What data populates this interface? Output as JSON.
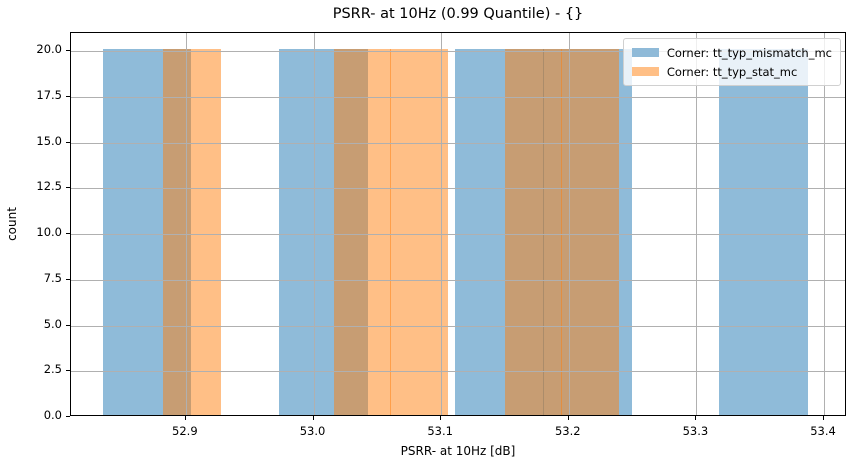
{
  "chart_data": {
    "type": "bar",
    "subtype": "histogram-overlay",
    "title": "PSRR- at 10Hz (0.99 Quantile) - {}",
    "xlabel": "PSRR- at 10Hz [dB]",
    "ylabel": "count",
    "xlim": [
      52.81,
      53.418
    ],
    "ylim": [
      0,
      21
    ],
    "xticks": [
      "52.9",
      "53.0",
      "53.1",
      "53.2",
      "53.3",
      "53.4"
    ],
    "yticks": [
      "0.0",
      "2.5",
      "5.0",
      "7.5",
      "10.0",
      "12.5",
      "15.0",
      "17.5",
      "20.0"
    ],
    "grid": true,
    "legend_position": "upper right",
    "series": [
      {
        "name": "Corner: tt_typ_mismatch_mc",
        "color": "#8fbad8",
        "bins": [
          {
            "x0": 52.835,
            "x1": 52.904,
            "count": 20
          },
          {
            "x0": 52.973,
            "x1": 53.042,
            "count": 20
          },
          {
            "x0": 53.111,
            "x1": 53.18,
            "count": 20
          },
          {
            "x0": 53.18,
            "x1": 53.249,
            "count": 20
          },
          {
            "x0": 53.318,
            "x1": 53.387,
            "count": 20
          }
        ]
      },
      {
        "name": "Corner: tt_typ_stat_mc",
        "color": "#ffbf86",
        "bins": [
          {
            "x0": 52.882,
            "x1": 52.927,
            "count": 20
          },
          {
            "x0": 53.016,
            "x1": 53.06,
            "count": 20
          },
          {
            "x0": 53.06,
            "x1": 53.105,
            "count": 20
          },
          {
            "x0": 53.15,
            "x1": 53.194,
            "count": 20
          },
          {
            "x0": 53.194,
            "x1": 53.239,
            "count": 20
          }
        ]
      }
    ]
  }
}
